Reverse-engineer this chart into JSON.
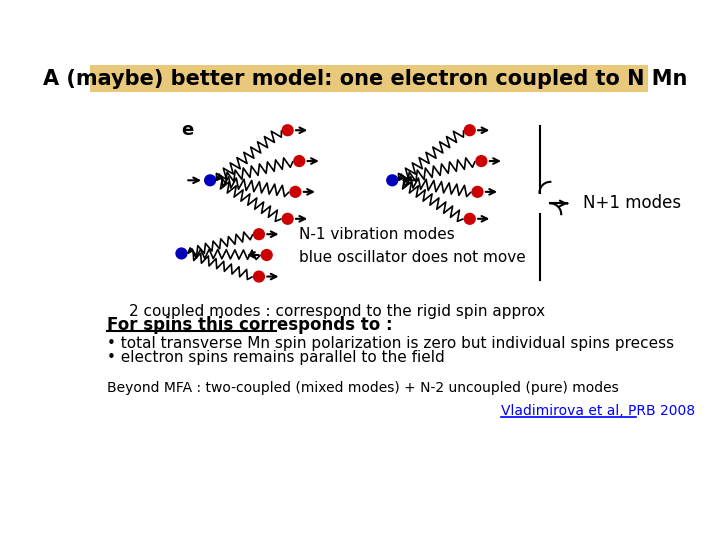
{
  "title": "A (maybe) better model: one electron coupled to N Mn",
  "title_bg": "#e8c87a",
  "bg_color": "#ffffff",
  "label_e": "e",
  "text_2coupled": "2 coupled modes : correspond to the rigid spin approx",
  "text_n1": "N+1 modes",
  "text_nm1": "N-1 vibration modes",
  "text_blue": "blue oscillator does not move",
  "text_for_spins": "For spins this corresponds to :",
  "text_bullet1": "• total transverse Mn spin polarization is zero but individual spins precess",
  "text_bullet2": "• electron spins remains parallel to the field",
  "text_beyond": "Beyond MFA : two-coupled (mixed modes) + N-2 uncoupled (pure) modes",
  "text_ref": "Vladimirova et al, PRB 2008",
  "blue_color": "#0000bb",
  "red_color": "#cc0000",
  "arrow_color": "#000000",
  "spring_color": "#000000",
  "title_fontsize": 15,
  "body_fontsize": 11,
  "small_fontsize": 10
}
